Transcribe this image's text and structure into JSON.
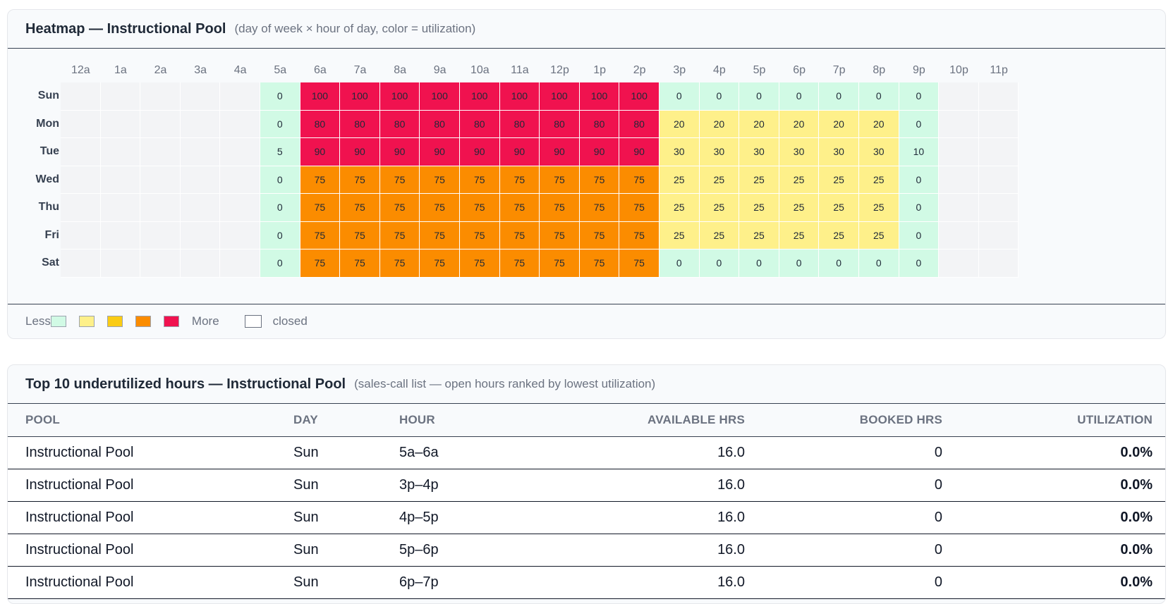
{
  "heatmap": {
    "title": "Heatmap — Instructional Pool",
    "subtitle": "(day of week × hour of day, color = utilization)",
    "legend": {
      "less": "Less",
      "more": "More",
      "closed": "closed",
      "swatches": [
        "#d1fae5",
        "#fef08a",
        "#facc15",
        "#fb8c00",
        "#f0124f"
      ]
    },
    "hours": [
      "12a",
      "1a",
      "2a",
      "3a",
      "4a",
      "5a",
      "6a",
      "7a",
      "8a",
      "9a",
      "10a",
      "11a",
      "12p",
      "1p",
      "2p",
      "3p",
      "4p",
      "5p",
      "6p",
      "7p",
      "8p",
      "9p",
      "10p",
      "11p"
    ],
    "days": [
      "Sun",
      "Mon",
      "Tue",
      "Wed",
      "Thu",
      "Fri",
      "Sat"
    ],
    "open_hours": [
      5,
      21
    ],
    "values": [
      [
        null,
        null,
        null,
        null,
        null,
        0,
        100,
        100,
        100,
        100,
        100,
        100,
        100,
        100,
        100,
        0,
        0,
        0,
        0,
        0,
        0,
        0,
        null,
        null
      ],
      [
        null,
        null,
        null,
        null,
        null,
        0,
        80,
        80,
        80,
        80,
        80,
        80,
        80,
        80,
        80,
        20,
        20,
        20,
        20,
        20,
        20,
        0,
        null,
        null
      ],
      [
        null,
        null,
        null,
        null,
        null,
        5,
        90,
        90,
        90,
        90,
        90,
        90,
        90,
        90,
        90,
        30,
        30,
        30,
        30,
        30,
        30,
        10,
        null,
        null
      ],
      [
        null,
        null,
        null,
        null,
        null,
        0,
        75,
        75,
        75,
        75,
        75,
        75,
        75,
        75,
        75,
        25,
        25,
        25,
        25,
        25,
        25,
        0,
        null,
        null
      ],
      [
        null,
        null,
        null,
        null,
        null,
        0,
        75,
        75,
        75,
        75,
        75,
        75,
        75,
        75,
        75,
        25,
        25,
        25,
        25,
        25,
        25,
        0,
        null,
        null
      ],
      [
        null,
        null,
        null,
        null,
        null,
        0,
        75,
        75,
        75,
        75,
        75,
        75,
        75,
        75,
        75,
        25,
        25,
        25,
        25,
        25,
        25,
        0,
        null,
        null
      ],
      [
        null,
        null,
        null,
        null,
        null,
        0,
        75,
        75,
        75,
        75,
        75,
        75,
        75,
        75,
        75,
        0,
        0,
        0,
        0,
        0,
        0,
        0,
        null,
        null
      ]
    ]
  },
  "underutilized": {
    "title": "Top 10 underutilized hours — Instructional Pool",
    "subtitle": "(sales-call list — open hours ranked by lowest utilization)",
    "columns": [
      "POOL",
      "DAY",
      "HOUR",
      "AVAILABLE HRS",
      "BOOKED HRS",
      "UTILIZATION"
    ],
    "rows": [
      [
        "Instructional Pool",
        "Sun",
        "5a–6a",
        "16.0",
        "0",
        "0.0%"
      ],
      [
        "Instructional Pool",
        "Sun",
        "3p–4p",
        "16.0",
        "0",
        "0.0%"
      ],
      [
        "Instructional Pool",
        "Sun",
        "4p–5p",
        "16.0",
        "0",
        "0.0%"
      ],
      [
        "Instructional Pool",
        "Sun",
        "5p–6p",
        "16.0",
        "0",
        "0.0%"
      ],
      [
        "Instructional Pool",
        "Sun",
        "6p–7p",
        "16.0",
        "0",
        "0.0%"
      ]
    ]
  }
}
